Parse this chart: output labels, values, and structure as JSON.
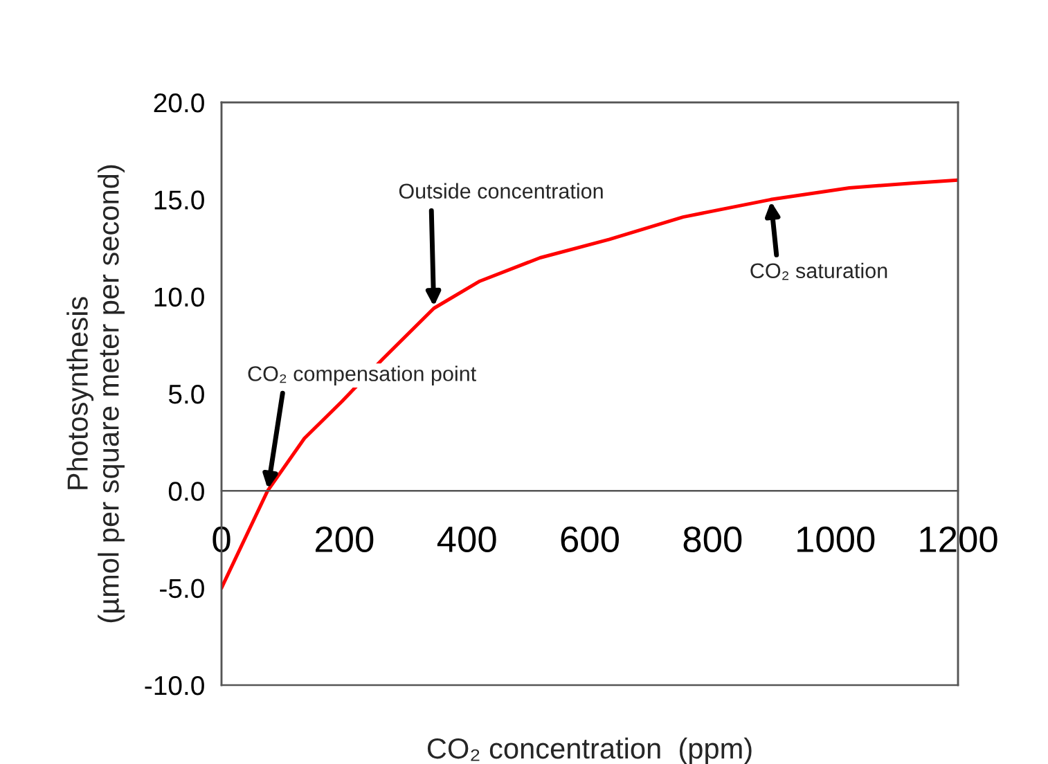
{
  "chart_data": {
    "type": "line",
    "xlabel": "CO₂ concentration  (ppm)",
    "ylabel": "Photosynthesis\n(µmol per square meter per second)",
    "x": [
      0,
      75,
      135,
      196,
      263,
      346,
      421,
      519,
      632,
      752,
      895,
      1023,
      1128,
      1200
    ],
    "series": [
      {
        "color": "#ff0000",
        "values": [
          -5.0,
          0.0,
          2.7,
          4.6,
          6.8,
          9.4,
          10.8,
          12.0,
          12.95,
          14.1,
          15.0,
          15.6,
          15.85,
          16.0
        ]
      }
    ],
    "xlim": [
      0,
      1200
    ],
    "xticks": [
      0,
      200,
      400,
      600,
      800,
      1000,
      1200
    ],
    "ylim": [
      -10,
      20
    ],
    "yticks": [
      {
        "value": -10,
        "label": "-10.0"
      },
      {
        "value": -5,
        "label": "-5.0"
      },
      {
        "value": 0,
        "label": "0.0"
      },
      {
        "value": 5,
        "label": "5.0"
      },
      {
        "value": 10,
        "label": "10.0"
      },
      {
        "value": 15,
        "label": "15.0"
      },
      {
        "value": 20,
        "label": "20.0"
      }
    ],
    "grid": false,
    "legend": false,
    "marker": "none",
    "line_style": "solid",
    "annotations": [
      {
        "text": "CO₂ compensation point",
        "x": 75,
        "y": 0.0
      },
      {
        "text": "Outside concentration",
        "x": 346,
        "y": 9.4
      },
      {
        "text": "CO₂ saturation",
        "x": 895,
        "y": 15.0
      }
    ]
  }
}
